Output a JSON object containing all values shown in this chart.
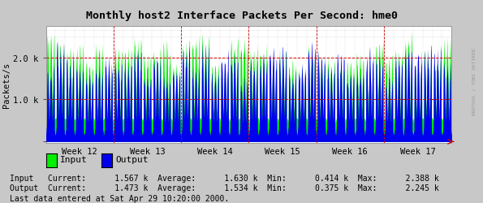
{
  "title": "Monthly host2 Interface Packets Per Second: hme0",
  "ylabel": "Packets/s",
  "weeks": [
    "Week 12",
    "Week 13",
    "Week 14",
    "Week 15",
    "Week 16",
    "Week 17"
  ],
  "ylim_min": -30,
  "ylim_max": 2750,
  "color_input": "#00EE00",
  "color_output": "#0000EE",
  "color_bg": "#C8C8C8",
  "color_plot_bg": "#FFFFFF",
  "color_grid_h": "#CC0000",
  "color_grid_v": "#AAAAAA",
  "watermark": "RRDTOOL / TOBI OETIKER",
  "legend_input": "Input",
  "legend_output": "Output",
  "stats_line1": "Input   Current:      1.567 k  Average:      1.630 k  Min:      0.414 k  Max:      2.388 k",
  "stats_line2": "Output  Current:      1.473 k  Average:      1.534 k  Min:      0.375 k  Max:      2.245 k",
  "last_data": "Last data entered at Sat Apr 29 10:20:00 2000.",
  "n_days": 42,
  "input_avg": 1630,
  "input_min": 414,
  "input_max": 2388,
  "output_avg": 1534,
  "output_min": 375,
  "output_max": 2245,
  "base_level": 550
}
